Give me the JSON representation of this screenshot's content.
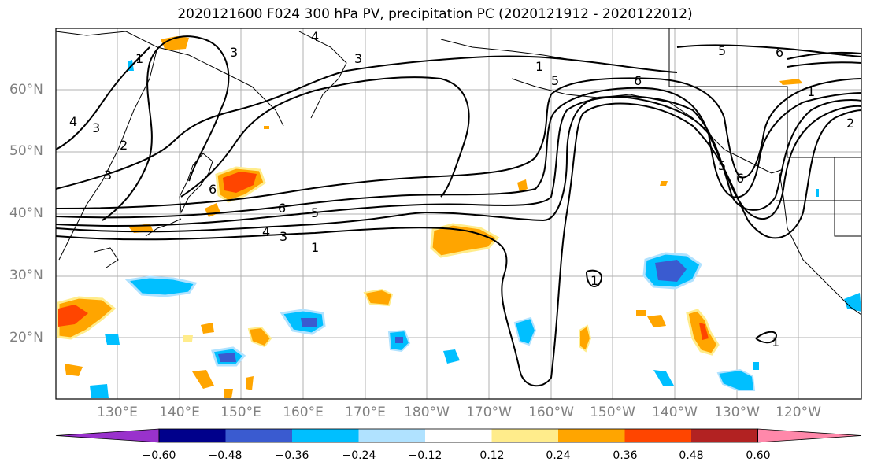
{
  "title": "2020121600 F024 300 hPa PV, precipitation PC (2020121912 - 2020122012)",
  "map": {
    "lat_labels": [
      "60°N",
      "50°N",
      "40°N",
      "30°N",
      "20°N"
    ],
    "lon_labels": [
      "130°E",
      "140°E",
      "150°E",
      "160°E",
      "170°E",
      "180°W",
      "170°W",
      "160°W",
      "150°W",
      "140°W",
      "130°W",
      "120°W"
    ],
    "pv_contour_labels": [
      "1",
      "3",
      "4",
      "3",
      "2",
      "3",
      "1",
      "4",
      "3",
      "6",
      "5",
      "6",
      "4",
      "3",
      "1",
      "1",
      "5",
      "6",
      "5",
      "6",
      "5",
      "6",
      "1",
      "2",
      "1"
    ],
    "colors": {
      "ocean": "#ffffff",
      "grid": "#b0b0b0",
      "contour": "#000000"
    }
  },
  "colorbar": {
    "ticks": [
      "−0.60",
      "−0.48",
      "−0.36",
      "−0.24",
      "−0.12",
      "0.12",
      "0.24",
      "0.36",
      "0.48",
      "0.60"
    ],
    "colors": [
      "#9932cc",
      "#00008b",
      "#3a5bd0",
      "#00bfff",
      "#b0e2ff",
      "#ffffff",
      "#ffec8b",
      "#ffa500",
      "#ff4500",
      "#b22222",
      "#ff88aa"
    ]
  }
}
